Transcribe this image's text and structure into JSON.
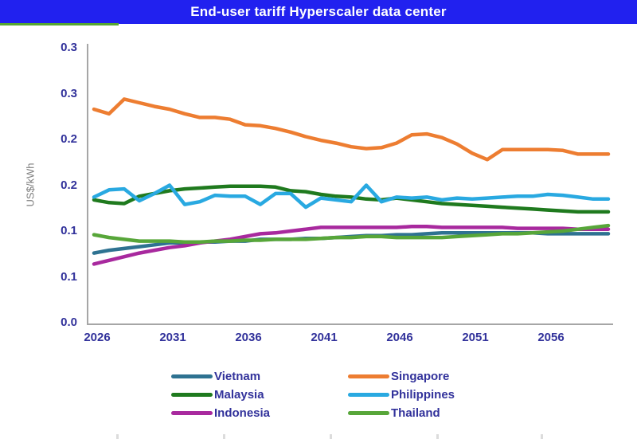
{
  "header": {
    "title": "End-user tariff Hyperscaler data center",
    "bar_color": "#2121EF",
    "tab_indicator_color": "#55A630"
  },
  "chart_data": {
    "type": "line",
    "title": "End-user tariff Hyperscaler data center",
    "xlabel": "",
    "ylabel": "US$/kWh",
    "ylim": [
      0,
      0.3
    ],
    "grid": false,
    "legend_position": "bottom-two-columns",
    "axis_color": "#A6A6A6",
    "tick_label_color": "#32329B",
    "y_ticks": [
      {
        "value": 0.3,
        "label": "0.3"
      },
      {
        "value": 0.25,
        "label": "0.3"
      },
      {
        "value": 0.2,
        "label": "0.2"
      },
      {
        "value": 0.15,
        "label": "0.2"
      },
      {
        "value": 0.1,
        "label": "0.1"
      },
      {
        "value": 0.05,
        "label": "0.1"
      },
      {
        "value": 0.0,
        "label": "0.0"
      }
    ],
    "x_tick_years": [
      2026,
      2031,
      2036,
      2041,
      2046,
      2051,
      2056
    ],
    "x": [
      2026,
      2027,
      2028,
      2029,
      2030,
      2031,
      2032,
      2033,
      2034,
      2035,
      2036,
      2037,
      2038,
      2039,
      2040,
      2041,
      2042,
      2043,
      2044,
      2045,
      2046,
      2047,
      2048,
      2049,
      2050,
      2051,
      2052,
      2053,
      2054,
      2055,
      2056,
      2057,
      2058,
      2059,
      2060
    ],
    "series": [
      {
        "name": "Vietnam",
        "color": "#2E7291",
        "values": [
          0.076,
          0.079,
          0.081,
          0.083,
          0.085,
          0.087,
          0.087,
          0.088,
          0.088,
          0.089,
          0.089,
          0.091,
          0.091,
          0.091,
          0.092,
          0.092,
          0.093,
          0.094,
          0.095,
          0.095,
          0.096,
          0.096,
          0.097,
          0.098,
          0.098,
          0.098,
          0.098,
          0.098,
          0.098,
          0.098,
          0.097,
          0.097,
          0.097,
          0.097,
          0.097
        ]
      },
      {
        "name": "Singapore",
        "color": "#ED7D31",
        "values": [
          0.233,
          0.228,
          0.244,
          0.24,
          0.236,
          0.233,
          0.228,
          0.224,
          0.224,
          0.222,
          0.216,
          0.215,
          0.212,
          0.208,
          0.203,
          0.199,
          0.196,
          0.192,
          0.19,
          0.191,
          0.196,
          0.205,
          0.206,
          0.202,
          0.195,
          0.185,
          0.178,
          0.189,
          0.189,
          0.189,
          0.189,
          0.188,
          0.184,
          0.184,
          0.184
        ]
      },
      {
        "name": "Malaysia",
        "color": "#1F7A1E",
        "values": [
          0.134,
          0.131,
          0.13,
          0.138,
          0.141,
          0.144,
          0.146,
          0.147,
          0.148,
          0.149,
          0.149,
          0.149,
          0.148,
          0.144,
          0.143,
          0.14,
          0.138,
          0.137,
          0.135,
          0.134,
          0.136,
          0.134,
          0.132,
          0.13,
          0.129,
          0.128,
          0.127,
          0.126,
          0.125,
          0.124,
          0.123,
          0.122,
          0.121,
          0.121,
          0.121
        ]
      },
      {
        "name": "Philippines",
        "color": "#29A9E1",
        "values": [
          0.137,
          0.145,
          0.146,
          0.133,
          0.141,
          0.15,
          0.129,
          0.132,
          0.139,
          0.138,
          0.138,
          0.129,
          0.141,
          0.141,
          0.126,
          0.136,
          0.134,
          0.132,
          0.15,
          0.132,
          0.137,
          0.136,
          0.137,
          0.134,
          0.136,
          0.135,
          0.136,
          0.137,
          0.138,
          0.138,
          0.14,
          0.139,
          0.137,
          0.135,
          0.135
        ]
      },
      {
        "name": "Indonesia",
        "color": "#A8299E",
        "values": [
          0.064,
          0.068,
          0.072,
          0.076,
          0.079,
          0.082,
          0.084,
          0.087,
          0.089,
          0.091,
          0.094,
          0.097,
          0.098,
          0.1,
          0.102,
          0.104,
          0.104,
          0.104,
          0.104,
          0.104,
          0.104,
          0.105,
          0.105,
          0.104,
          0.104,
          0.104,
          0.104,
          0.104,
          0.103,
          0.103,
          0.103,
          0.103,
          0.102,
          0.102,
          0.102
        ]
      },
      {
        "name": "Thailand",
        "color": "#57A639",
        "values": [
          0.096,
          0.093,
          0.091,
          0.089,
          0.089,
          0.089,
          0.088,
          0.088,
          0.089,
          0.089,
          0.09,
          0.09,
          0.091,
          0.091,
          0.091,
          0.092,
          0.093,
          0.093,
          0.094,
          0.094,
          0.093,
          0.093,
          0.093,
          0.093,
          0.094,
          0.095,
          0.096,
          0.097,
          0.097,
          0.098,
          0.099,
          0.1,
          0.102,
          0.104,
          0.106
        ]
      }
    ]
  }
}
